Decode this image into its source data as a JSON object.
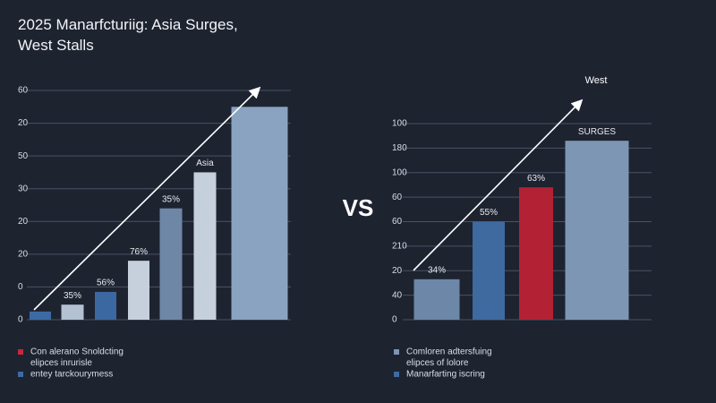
{
  "vs_label": "VS",
  "chart_data": [
    {
      "type": "bar",
      "title": "2025 Manarfcturiig: Asia Surges, West Stalls",
      "categories": [
        null,
        null,
        null,
        null,
        null,
        null,
        null
      ],
      "values": [
        2.5,
        4.6,
        8.5,
        18,
        34,
        45,
        65
      ],
      "colors": [
        "#3d6aa3",
        "#b3c1d2",
        "#3b68a1",
        "#c6d0dc",
        "#6e87a7",
        "#c6d0dc",
        "#8aa3c0"
      ],
      "bar_labels": [
        null,
        "35%",
        "56%",
        "76%",
        "35%",
        "Asia",
        null
      ],
      "ylim": [
        0,
        70
      ],
      "yticks": [
        0,
        {
          "value": 10,
          "label": "0"
        },
        20,
        {
          "value": 30,
          "label": "20"
        },
        {
          "value": 40,
          "label": "30"
        },
        50,
        {
          "value": 60,
          "label": "20"
        },
        {
          "value": 70,
          "label": "60"
        }
      ],
      "grid": true,
      "legend": [
        {
          "color": "#c8283a",
          "lines": [
            "Con alerano Snoldcting",
            "elipces inrurisle"
          ]
        },
        {
          "color": "#3d6aa3",
          "lines": [
            "entey tarckourymess"
          ]
        }
      ]
    },
    {
      "type": "bar",
      "categories": [
        null,
        null,
        null,
        null
      ],
      "values": [
        33,
        80,
        108,
        146
      ],
      "colors": [
        "#6c87a8",
        "#3e6aa0",
        "#b22234",
        "#7d96b3"
      ],
      "bar_labels": [
        "34%",
        "55%",
        "63%",
        "SURGES"
      ],
      "annotations": [
        "West"
      ],
      "ylim": [
        0,
        160
      ],
      "yticks": [
        0,
        {
          "value": 20,
          "label": "40"
        },
        {
          "value": 40,
          "label": "20"
        },
        {
          "value": 60,
          "label": "210"
        },
        {
          "value": 80,
          "label": "60"
        },
        {
          "value": 100,
          "label": "60"
        },
        {
          "value": 120,
          "label": "100"
        },
        {
          "value": 140,
          "label": "180"
        },
        {
          "value": 160,
          "label": "100"
        }
      ],
      "grid": true,
      "legend": [
        {
          "color": "#7d96b3",
          "lines": [
            "Comloren adtersfuing",
            "elipces of lolore"
          ]
        },
        {
          "color": "#3e6aa0",
          "lines": [
            "Manarfarting iscring"
          ]
        }
      ]
    }
  ]
}
